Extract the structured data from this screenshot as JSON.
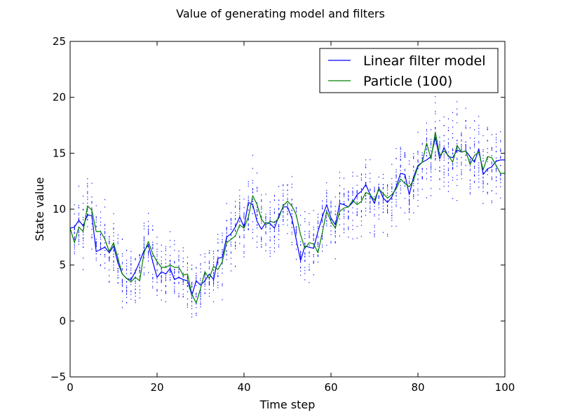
{
  "chart_data": {
    "type": "line",
    "title": "Value of generating model and filters",
    "xlabel": "Time step",
    "ylabel": "State value",
    "xlim": [
      0,
      100
    ],
    "ylim": [
      -5,
      25
    ],
    "xticks": [
      "0",
      "20",
      "40",
      "60",
      "80",
      "100"
    ],
    "yticks": [
      "−5",
      "0",
      "5",
      "10",
      "15",
      "20",
      "25"
    ],
    "grid": false,
    "legend": "top-right",
    "colors": {
      "linear": "#0000ff",
      "particle": "#008000",
      "particles": "#0000ff"
    },
    "x": [
      0,
      1,
      2,
      3,
      4,
      5,
      6,
      7,
      8,
      9,
      10,
      11,
      12,
      13,
      14,
      15,
      16,
      17,
      18,
      19,
      20,
      21,
      22,
      23,
      24,
      25,
      26,
      27,
      28,
      29,
      30,
      31,
      32,
      33,
      34,
      35,
      36,
      37,
      38,
      39,
      40,
      41,
      42,
      43,
      44,
      45,
      46,
      47,
      48,
      49,
      50,
      51,
      52,
      53,
      54,
      55,
      56,
      57,
      58,
      59,
      60,
      61,
      62,
      63,
      64,
      65,
      66,
      67,
      68,
      69,
      70,
      71,
      72,
      73,
      74,
      75,
      76,
      77,
      78,
      79,
      80,
      81,
      82,
      83,
      84,
      85,
      86,
      87,
      88,
      89,
      90,
      91,
      92,
      93,
      94,
      95,
      96,
      97,
      98,
      99,
      100
    ],
    "series": [
      {
        "name": "Linear filter model",
        "values": [
          8.3,
          8.4,
          9.0,
          8.5,
          9.5,
          9.4,
          6.2,
          6.4,
          6.6,
          6.1,
          6.7,
          5.2,
          4.2,
          3.8,
          3.7,
          4.4,
          5.3,
          6.3,
          6.8,
          5.3,
          3.9,
          4.4,
          4.2,
          4.7,
          3.7,
          3.9,
          3.7,
          3.6,
          2.3,
          3.6,
          3.2,
          3.6,
          4.2,
          3.7,
          5.6,
          5.7,
          7.5,
          7.8,
          8.4,
          9.3,
          8.4,
          10.6,
          10.4,
          8.9,
          8.2,
          8.8,
          8.7,
          8.3,
          9.4,
          10.2,
          10.2,
          9.2,
          7.3,
          5.4,
          6.7,
          6.6,
          6.5,
          8.0,
          9.3,
          10.4,
          9.2,
          8.6,
          10.5,
          10.4,
          10.2,
          10.6,
          11.3,
          11.6,
          12.2,
          11.3,
          10.5,
          11.9,
          11.0,
          10.6,
          11.1,
          12.0,
          13.2,
          13.1,
          11.3,
          12.9,
          13.9,
          14.2,
          14.4,
          14.7,
          16.4,
          14.5,
          15.5,
          14.7,
          14.6,
          15.3,
          15.1,
          15.2,
          14.7,
          14.2,
          15.4,
          13.1,
          13.6,
          13.8,
          14.3,
          14.4,
          14.4
        ]
      },
      {
        "name": "Particle (100)",
        "values": [
          8.3,
          7.0,
          8.4,
          8.0,
          10.3,
          9.9,
          8.0,
          8.0,
          7.3,
          6.2,
          7.0,
          5.6,
          4.2,
          3.8,
          3.5,
          3.9,
          3.6,
          6.1,
          7.1,
          6.0,
          5.3,
          4.8,
          4.8,
          5.0,
          4.8,
          4.8,
          4.1,
          4.2,
          2.4,
          1.6,
          2.9,
          4.4,
          3.8,
          4.9,
          4.6,
          5.3,
          7.0,
          7.3,
          7.6,
          8.6,
          8.3,
          9.3,
          11.2,
          10.4,
          9.1,
          8.6,
          8.9,
          8.8,
          9.2,
          10.3,
          10.7,
          10.3,
          9.5,
          7.7,
          6.5,
          7.0,
          6.9,
          6.1,
          7.9,
          9.8,
          8.9,
          8.3,
          9.8,
          10.1,
          10.2,
          10.8,
          10.4,
          10.7,
          11.5,
          11.3,
          10.8,
          11.8,
          11.4,
          11.0,
          11.3,
          11.8,
          12.7,
          12.3,
          12.0,
          12.6,
          13.8,
          14.2,
          15.9,
          14.5,
          16.9,
          14.8,
          15.2,
          14.8,
          14.2,
          15.7,
          15.1,
          15.2,
          14.0,
          14.8,
          15.1,
          13.5,
          14.7,
          14.6,
          13.9,
          13.2,
          13.2
        ]
      }
    ],
    "particle_spread": [
      2.6,
      2.6,
      2.7,
      2.7,
      2.8,
      2.8,
      2.8,
      2.8,
      2.6,
      2.6,
      2.5,
      2.5,
      2.4,
      2.4,
      2.3,
      2.3,
      2.6,
      2.6,
      2.7,
      2.7,
      2.5,
      2.5,
      2.4,
      2.4,
      2.3,
      2.3,
      2.3,
      2.3,
      2.2,
      2.2,
      2.2,
      2.2,
      2.4,
      2.4,
      2.5,
      2.5,
      2.5,
      2.5,
      2.6,
      2.6,
      2.7,
      2.7,
      2.8,
      2.8,
      2.6,
      2.6,
      2.5,
      2.5,
      2.4,
      2.4,
      2.4,
      2.4,
      2.4,
      2.4,
      2.6,
      2.6,
      2.6,
      2.6,
      2.6,
      2.6,
      2.7,
      2.7,
      2.6,
      2.6,
      2.6,
      2.6,
      2.7,
      2.7,
      2.8,
      2.8,
      2.7,
      2.7,
      2.8,
      2.8,
      2.8,
      2.8,
      2.9,
      2.9,
      3.0,
      3.0,
      3.1,
      3.1,
      3.2,
      3.2,
      3.3,
      3.3,
      3.2,
      3.2,
      3.1,
      3.1,
      3.1,
      3.1,
      3.0,
      3.0,
      3.1,
      3.1,
      3.1,
      3.1,
      3.0,
      3.0,
      3.0
    ]
  }
}
